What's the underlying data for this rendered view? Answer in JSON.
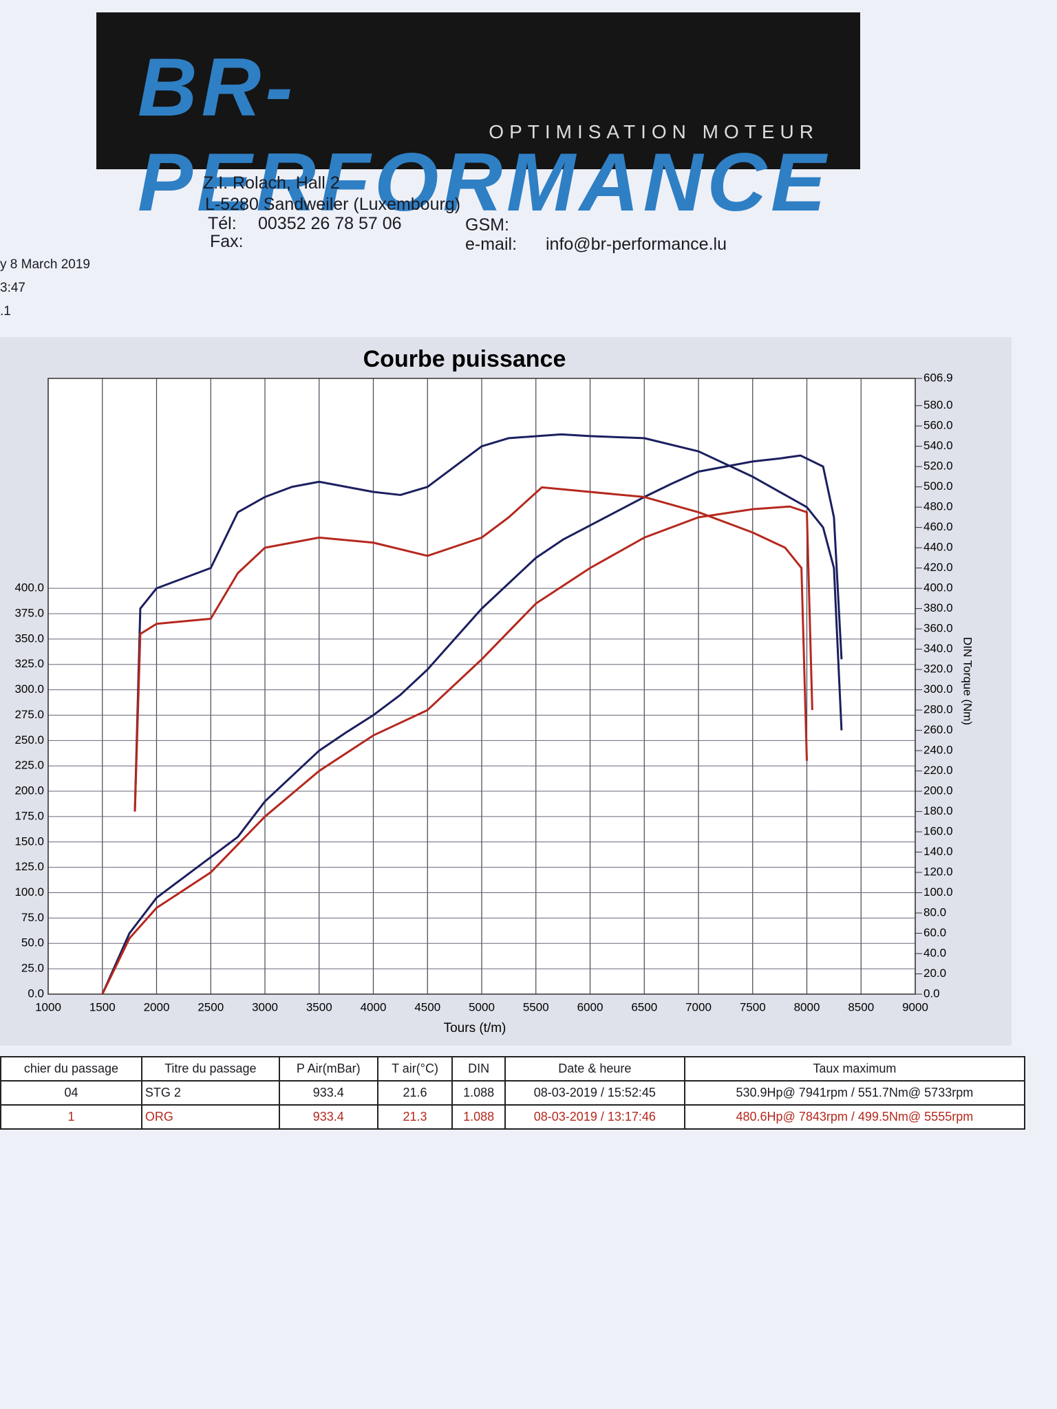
{
  "header": {
    "logo": "BR-PERFORMANCE",
    "tagline": "OPTIMISATION MOTEUR",
    "address": [
      "Z.I. Rolach, Hall 2",
      "L-5280 Sandweiler (Luxembourg)"
    ],
    "tel_label": "Tél:",
    "tel": "00352 26 78 57 06",
    "fax_label": "Fax:",
    "gsm_label": "GSM:",
    "email_label": "e-mail:",
    "email": "info@br-performance.lu",
    "meta": [
      "y 8 March 2019",
      "3:47",
      ".1"
    ]
  },
  "chart_data": {
    "type": "line",
    "title": "Courbe puissance",
    "xlabel": "Tours (t/m)",
    "y2label": "DIN Torque (Nm)",
    "xlim": [
      1000,
      9000
    ],
    "xticks": [
      1000,
      1500,
      2000,
      2500,
      3000,
      3500,
      4000,
      4500,
      5000,
      5500,
      6000,
      6500,
      7000,
      7500,
      8000,
      8500,
      9000
    ],
    "ylim": [
      0,
      606.9
    ],
    "yticks": [
      {
        "value": 0,
        "label": "0.0"
      },
      {
        "value": 25,
        "label": "25.0"
      },
      {
        "value": 50,
        "label": "50.0"
      },
      {
        "value": 75,
        "label": "75.0"
      },
      {
        "value": 100,
        "label": "100.0"
      },
      {
        "value": 125,
        "label": "125.0"
      },
      {
        "value": 150,
        "label": "150.0"
      },
      {
        "value": 175,
        "label": "175.0"
      },
      {
        "value": 200,
        "label": "200.0"
      },
      {
        "value": 225,
        "label": "225.0"
      },
      {
        "value": 250,
        "label": "250.0"
      },
      {
        "value": 275,
        "label": "275.0"
      },
      {
        "value": 300,
        "label": "300.0"
      },
      {
        "value": 325,
        "label": "325.0"
      },
      {
        "value": 350,
        "label": "350.0"
      },
      {
        "value": 375,
        "label": "375.0"
      },
      {
        "value": 400,
        "label": "400.0"
      }
    ],
    "y2lim": [
      0,
      606.9
    ],
    "y2ticks": [
      {
        "value": 0,
        "label": "0.0"
      },
      {
        "value": 20,
        "label": "20.0"
      },
      {
        "value": 40,
        "label": "40.0"
      },
      {
        "value": 60,
        "label": "60.0"
      },
      {
        "value": 80,
        "label": "80.0"
      },
      {
        "value": 100,
        "label": "100.0"
      },
      {
        "value": 120,
        "label": "120.0"
      },
      {
        "value": 140,
        "label": "140.0"
      },
      {
        "value": 160,
        "label": "160.0"
      },
      {
        "value": 180,
        "label": "180.0"
      },
      {
        "value": 200,
        "label": "200.0"
      },
      {
        "value": 220,
        "label": "220.0"
      },
      {
        "value": 240,
        "label": "240.0"
      },
      {
        "value": 260,
        "label": "260.0"
      },
      {
        "value": 280,
        "label": "280.0"
      },
      {
        "value": 300,
        "label": "300.0"
      },
      {
        "value": 320,
        "label": "320.0"
      },
      {
        "value": 340,
        "label": "340.0"
      },
      {
        "value": 360,
        "label": "360.0"
      },
      {
        "value": 380,
        "label": "380.0"
      },
      {
        "value": 400,
        "label": "400.0"
      },
      {
        "value": 420,
        "label": "420.0"
      },
      {
        "value": 440,
        "label": "440.0"
      },
      {
        "value": 460,
        "label": "460.0"
      },
      {
        "value": 480,
        "label": "480.0"
      },
      {
        "value": 500,
        "label": "500.0"
      },
      {
        "value": 520,
        "label": "520.0"
      },
      {
        "value": 540,
        "label": "540.0"
      },
      {
        "value": 560,
        "label": "560.0"
      },
      {
        "value": 580,
        "label": "580.0"
      },
      {
        "value": 606.9,
        "label": "606.9"
      }
    ],
    "grid": true,
    "series": [
      {
        "color": "#1c1f5e",
        "x": [
          1500,
          1750,
          2000,
          2250,
          2500,
          2750,
          3000,
          3250,
          3500,
          3750,
          4000,
          4250,
          4500,
          4750,
          5000,
          5250,
          5500,
          5750,
          6000,
          6250,
          6500,
          6750,
          7000,
          7250,
          7500,
          7750,
          7941,
          8150,
          8250,
          8320
        ],
        "values": [
          0,
          60,
          95,
          115,
          135,
          155,
          190,
          215,
          240,
          258,
          275,
          295,
          320,
          350,
          380,
          405,
          430,
          448,
          462,
          476,
          490,
          503,
          515,
          520,
          525,
          528,
          530.9,
          520,
          470,
          330
        ]
      },
      {
        "color": "#1c1f5e",
        "axis": "y2",
        "x": [
          1800,
          1850,
          2000,
          2250,
          2500,
          2750,
          3000,
          3250,
          3500,
          3750,
          4000,
          4250,
          4500,
          4750,
          5000,
          5250,
          5733,
          6000,
          6500,
          7000,
          7500,
          7750,
          8000,
          8150,
          8250,
          8320
        ],
        "values": [
          180,
          380,
          400,
          410,
          420,
          475,
          490,
          500,
          505,
          500,
          495,
          492,
          500,
          520,
          540,
          548,
          551.7,
          550,
          548,
          535,
          510,
          495,
          480,
          460,
          420,
          260
        ]
      },
      {
        "color": "#b5281e",
        "x": [
          1500,
          1750,
          2000,
          2500,
          3000,
          3500,
          4000,
          4500,
          5000,
          5500,
          6000,
          6500,
          7000,
          7500,
          7843,
          8000,
          8050
        ],
        "values": [
          0,
          55,
          85,
          120,
          175,
          220,
          255,
          280,
          330,
          385,
          420,
          450,
          470,
          478,
          480.6,
          475,
          280
        ]
      },
      {
        "color": "#b5281e",
        "axis": "y2",
        "x": [
          1800,
          1850,
          2000,
          2500,
          2750,
          3000,
          3500,
          4000,
          4500,
          5000,
          5250,
          5555,
          6000,
          6500,
          7000,
          7500,
          7800,
          7950,
          8000
        ],
        "values": [
          180,
          355,
          365,
          370,
          415,
          440,
          450,
          445,
          432,
          450,
          470,
          499.5,
          495,
          490,
          475,
          455,
          440,
          420,
          230
        ]
      }
    ]
  },
  "table": {
    "headers": [
      "chier du passage",
      "Titre du passage",
      "P Air(mBar)",
      "T air(°C)",
      "DIN",
      "Date & heure",
      "Taux maximum"
    ],
    "rows": [
      [
        "04",
        "STG 2",
        "933.4",
        "21.6",
        "1.088",
        "08-03-2019 / 15:52:45",
        "530.9Hp@ 7941rpm / 551.7Nm@ 5733rpm"
      ],
      [
        "1",
        "ORG",
        "933.4",
        "21.3",
        "1.088",
        "08-03-2019 / 13:17:46",
        "480.6Hp@ 7843rpm / 499.5Nm@ 5555rpm"
      ]
    ]
  }
}
